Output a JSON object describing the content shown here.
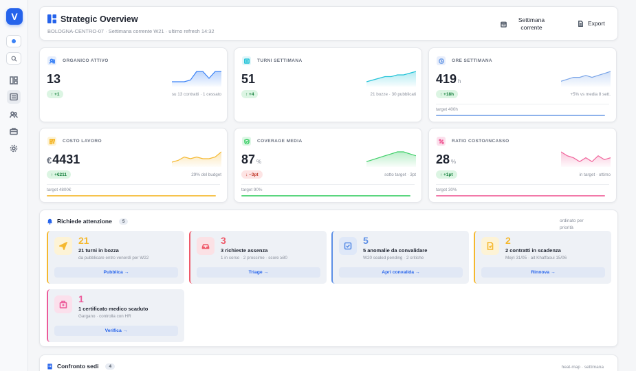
{
  "sidebar": {
    "logo": "V",
    "icons": [
      "dashboard-icon",
      "list-icon",
      "users-icon",
      "briefcase-icon",
      "gear-icon"
    ]
  },
  "header": {
    "title": "Strategic Overview",
    "subtitle": "BOLOGNA-CENTRO-07 · Settimana corrente W21 · ultimo refresh 14:32",
    "week_button": "Settimana corrente",
    "export_button": "Export"
  },
  "kpis": [
    {
      "label": "ORGANICO ATTIVO",
      "value": "13",
      "unit": "",
      "currency": "",
      "badge": "↑ +1",
      "badge_type": "up",
      "note": "su 13 contratti · 1 cessato",
      "target": "",
      "color": "#3b82f6",
      "spark": [
        6,
        6,
        6,
        7,
        12,
        12,
        8,
        12,
        12
      ]
    },
    {
      "label": "TURNI SETTIMANA",
      "value": "51",
      "unit": "",
      "currency": "",
      "badge": "↑ +4",
      "badge_type": "up",
      "note": "21 bozze · 30 pubblicati",
      "target": "",
      "color": "#22c3d8",
      "spark": [
        5,
        6,
        7,
        8,
        8,
        9,
        9,
        10,
        11
      ]
    },
    {
      "label": "ORE SETTIMANA",
      "value": "419",
      "unit": "h",
      "currency": "",
      "badge": "↑ +18h",
      "badge_type": "up",
      "note": "+5% vs media 8 sett.",
      "target": "target 400h",
      "target_pct": 100,
      "color": "#7aa5e8",
      "spark": [
        4,
        5,
        6,
        6,
        7,
        6,
        7,
        8,
        9
      ]
    },
    {
      "label": "COSTO LAVORO",
      "value": "4431",
      "unit": "",
      "currency": "€",
      "badge": "↑ +€211",
      "badge_type": "up",
      "note": "29% del budget",
      "target": "target 4800€",
      "target_pct": 100,
      "color": "#f5b82e",
      "spark": [
        3,
        4,
        6,
        5,
        6,
        5,
        5,
        6,
        9
      ]
    },
    {
      "label": "COVERAGE MEDIA",
      "value": "87",
      "unit": "%",
      "currency": "",
      "badge": "↓ −3pt",
      "badge_type": "down",
      "note": "sotto target · 3pt",
      "target": "target 90%",
      "target_pct": 100,
      "color": "#3ecf68",
      "spark": [
        3,
        4,
        5,
        6,
        7,
        8,
        8,
        7,
        6
      ]
    },
    {
      "label": "RATIO COSTO/INCASSO",
      "value": "28",
      "unit": "%",
      "currency": "",
      "badge": "↑ +1pt",
      "badge_type": "up",
      "note": "in target · ottimo",
      "target": "target 30%",
      "target_pct": 100,
      "color": "#f0629a",
      "spark": [
        9,
        7,
        6,
        4,
        6,
        4,
        7,
        5,
        6
      ]
    }
  ],
  "attention": {
    "title": "Richiede attenzione",
    "count": "5",
    "sort_note": "ordinato per priorità",
    "items": [
      {
        "num": "21",
        "title": "21 turni in bozza",
        "sub": "da pubblicare entro venerdì per W22",
        "action": "Pubblica →",
        "color": "#f5b82e",
        "bg": "#fdf3d6",
        "icon": "send-icon"
      },
      {
        "num": "3",
        "title": "3 richieste assenza",
        "sub": "1 in corso · 2 prossime · score ≥80",
        "action": "Triage →",
        "color": "#ef5a6a",
        "bg": "#fbe1e5",
        "icon": "car-icon"
      },
      {
        "num": "5",
        "title": "5 anomalie da convalidare",
        "sub": "W20 sealed pending · 2 critiche",
        "action": "Apri convalida →",
        "color": "#5b8ee6",
        "bg": "#dfe8f8",
        "icon": "checkbox-icon"
      },
      {
        "num": "2",
        "title": "2 contratti in scadenza",
        "sub": "Mejri 31/05 · ait Khaffaoui 15/06",
        "action": "Rinnova →",
        "color": "#f5b82e",
        "bg": "#fdf3d6",
        "icon": "document-icon"
      },
      {
        "num": "1",
        "title": "1 certificato medico scaduto",
        "sub": "Gargano · controlla con HR",
        "action": "Verifica →",
        "color": "#ec5b9a",
        "bg": "#fbe0ec",
        "icon": "hospital-icon"
      }
    ]
  },
  "compare": {
    "title": "Confronto sedi",
    "count": "4",
    "note": "heat-map · settimana"
  }
}
